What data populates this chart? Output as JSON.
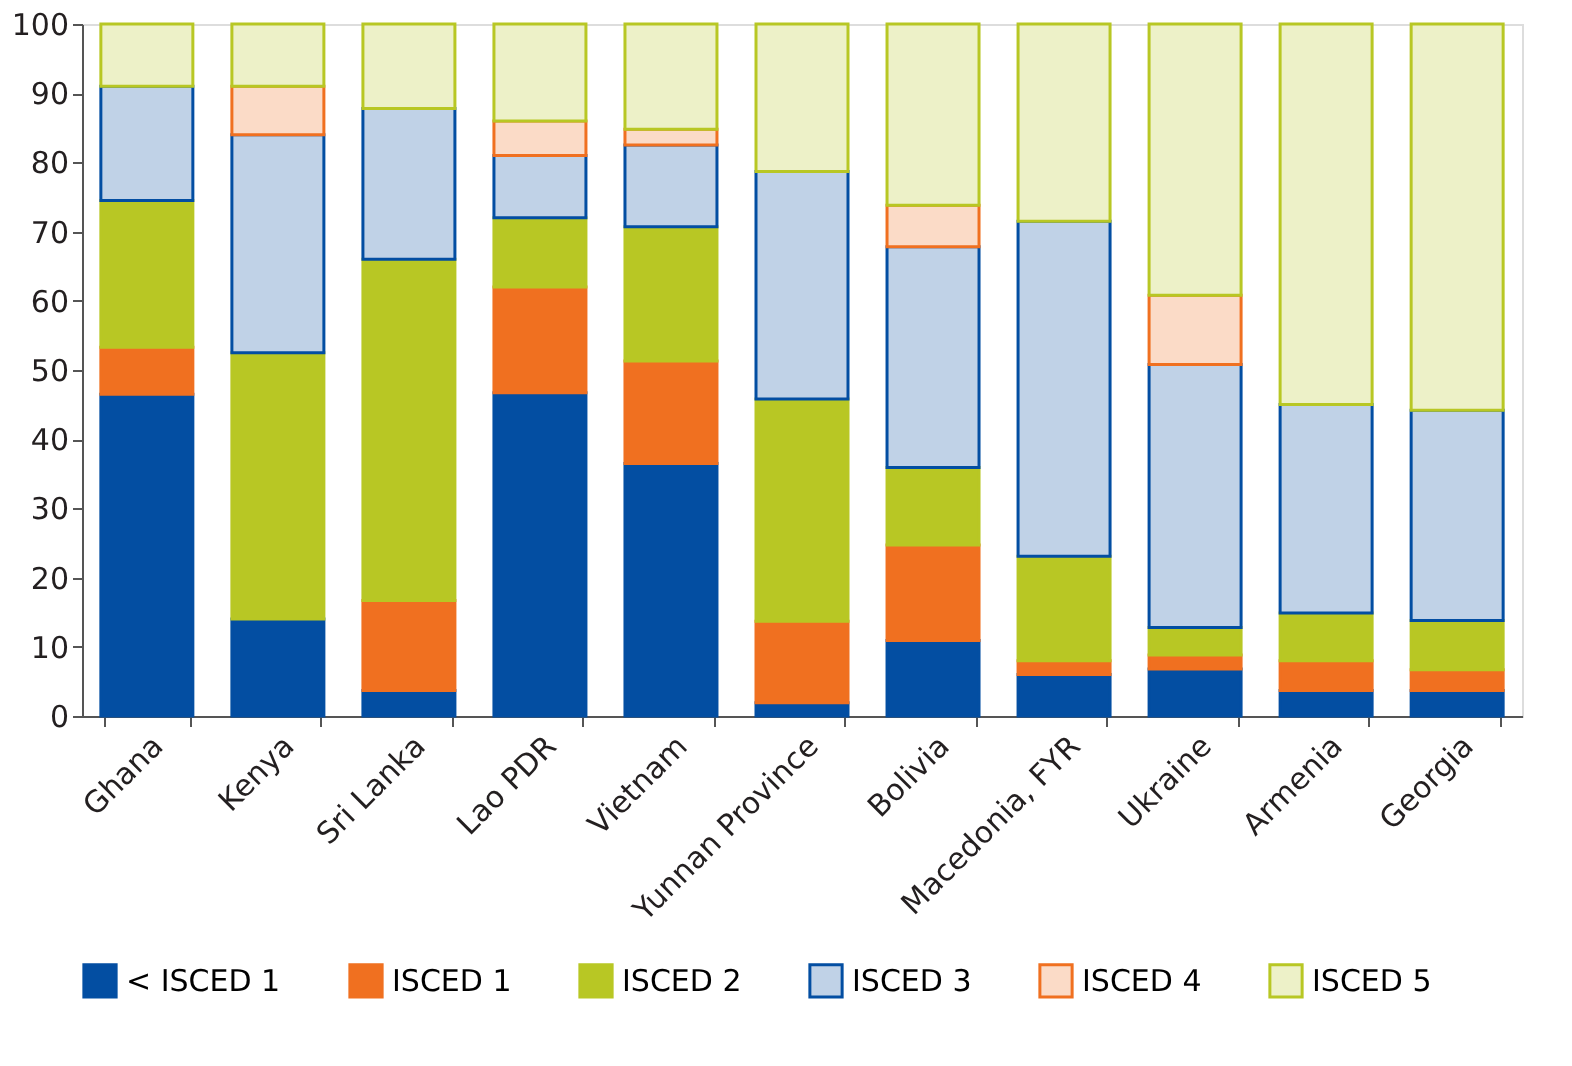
{
  "chart_data": {
    "type": "bar",
    "stacked": true,
    "categories": [
      "Ghana",
      "Kenya",
      "Sri Lanka",
      "Lao PDR",
      "Vietnam",
      "Yunnan Province",
      "Bolivia",
      "Macedonia, FYR",
      "Ukraine",
      "Armenia",
      "Georgia"
    ],
    "series": [
      {
        "name": "< ISCED 1",
        "color": "#034ea2",
        "values": [
          46.5,
          14,
          3.7,
          46.7,
          36.5,
          1.9,
          10.9,
          6,
          6.8,
          3.7,
          3.7
        ]
      },
      {
        "name": "ISCED 1",
        "color": "#f07020",
        "values": [
          6.8,
          0,
          13,
          15.3,
          14.8,
          11.8,
          13.8,
          2,
          2,
          4.3,
          3
        ]
      },
      {
        "name": "ISCED 2",
        "color": "#b8c724",
        "values": [
          21.2,
          38.5,
          49.3,
          10,
          19.4,
          32.1,
          11.2,
          15.1,
          4,
          6.9,
          7.1
        ]
      },
      {
        "name": "ISCED 3",
        "color": "#034ea2",
        "values": [
          16.5,
          31.5,
          21.8,
          9,
          11.8,
          32.9,
          31.9,
          48.4,
          38,
          30.1,
          30.4
        ]
      },
      {
        "name": "ISCED 4",
        "color": "#f07020",
        "values": [
          0,
          7,
          0,
          5,
          2.3,
          0,
          6,
          0,
          10,
          0,
          0
        ]
      },
      {
        "name": "ISCED 5",
        "color": "#b8c724",
        "values": [
          9,
          9,
          12.2,
          14,
          15.2,
          21.3,
          26.2,
          28.5,
          39.2,
          55,
          55.8
        ]
      }
    ],
    "ylim": [
      0,
      100
    ],
    "yticks": [
      0,
      10,
      20,
      30,
      40,
      50,
      60,
      70,
      80,
      90,
      100
    ],
    "grid": false,
    "legend": "bottom"
  }
}
